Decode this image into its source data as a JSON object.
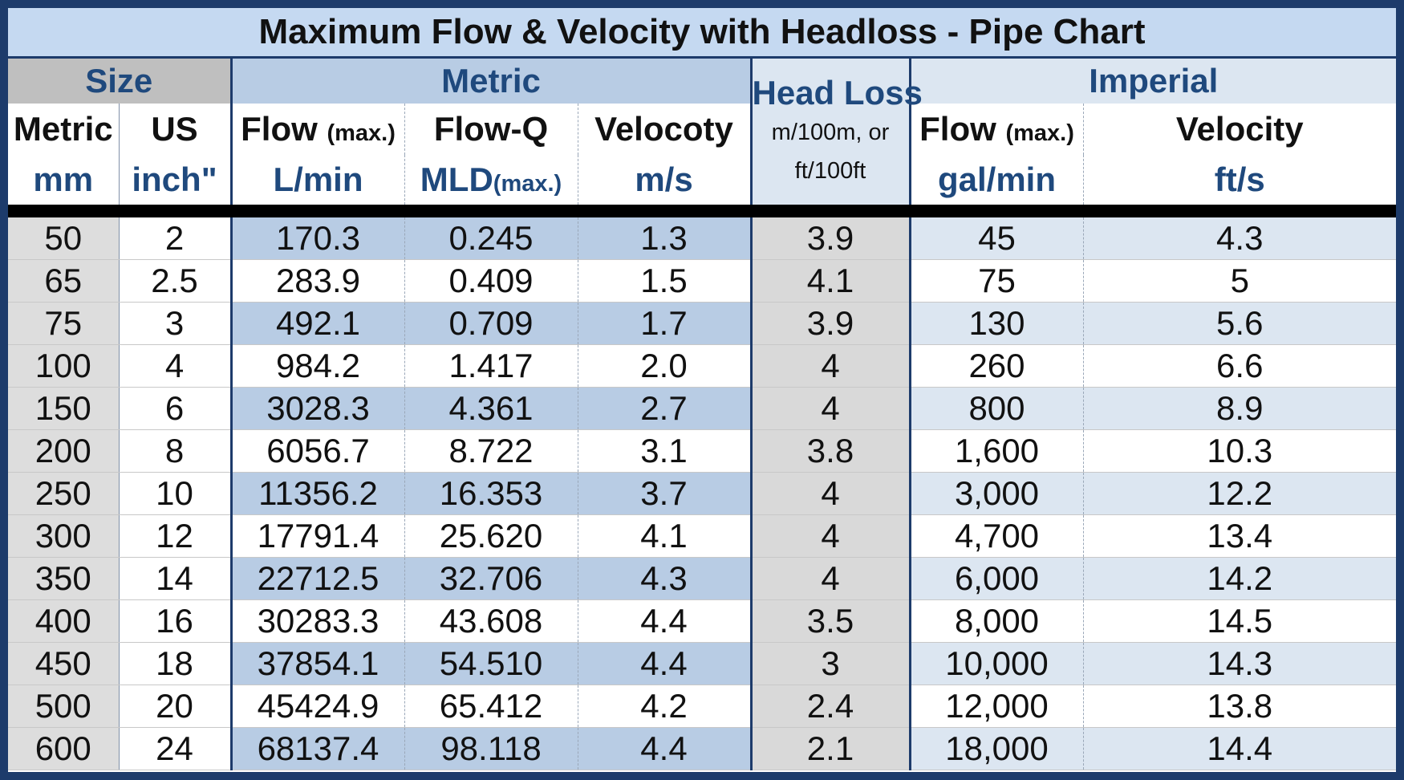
{
  "title": "Maximum Flow & Velocity with Headloss - Pipe Chart",
  "groups": {
    "size": "Size",
    "metric": "Metric",
    "head_loss": "Head Loss",
    "head_loss_unit_line1": "m/100m, or",
    "head_loss_unit_line2": "ft/100ft",
    "imperial": "Imperial"
  },
  "headers": {
    "metric_size": "Metric",
    "metric_size_unit": "mm",
    "us_size": "US",
    "us_size_unit": "inch\"",
    "flow_lmin": "Flow",
    "flow_lmin_max": "(max.)",
    "flow_lmin_unit": "L/min",
    "flow_q": "Flow-Q",
    "flow_q_unit": "MLD",
    "flow_q_unit_max": "(max.)",
    "velocity_ms": "Velocoty",
    "velocity_ms_unit": "m/s",
    "flow_gpm": "Flow",
    "flow_gpm_max": "(max.)",
    "flow_gpm_unit": "gal/min",
    "velocity_fts": "Velocity",
    "velocity_fts_unit": "ft/s"
  },
  "chart_data": {
    "type": "table",
    "title": "Maximum Flow & Velocity with Headloss - Pipe Chart",
    "columns": [
      "Metric mm",
      "US inch\"",
      "Flow (max.) L/min",
      "Flow-Q MLD(max.)",
      "Velocoty m/s",
      "Head Loss m/100m, or ft/100ft",
      "Flow (max.) gal/min",
      "Velocity ft/s"
    ],
    "rows": [
      [
        "50",
        "2",
        "170.3",
        "0.245",
        "1.3",
        "3.9",
        "45",
        "4.3"
      ],
      [
        "65",
        "2.5",
        "283.9",
        "0.409",
        "1.5",
        "4.1",
        "75",
        "5"
      ],
      [
        "75",
        "3",
        "492.1",
        "0.709",
        "1.7",
        "3.9",
        "130",
        "5.6"
      ],
      [
        "100",
        "4",
        "984.2",
        "1.417",
        "2.0",
        "4",
        "260",
        "6.6"
      ],
      [
        "150",
        "6",
        "3028.3",
        "4.361",
        "2.7",
        "4",
        "800",
        "8.9"
      ],
      [
        "200",
        "8",
        "6056.7",
        "8.722",
        "3.1",
        "3.8",
        "1,600",
        "10.3"
      ],
      [
        "250",
        "10",
        "11356.2",
        "16.353",
        "3.7",
        "4",
        "3,000",
        "12.2"
      ],
      [
        "300",
        "12",
        "17791.4",
        "25.620",
        "4.1",
        "4",
        "4,700",
        "13.4"
      ],
      [
        "350",
        "14",
        "22712.5",
        "32.706",
        "4.3",
        "4",
        "6,000",
        "14.2"
      ],
      [
        "400",
        "16",
        "30283.3",
        "43.608",
        "4.4",
        "3.5",
        "8,000",
        "14.5"
      ],
      [
        "450",
        "18",
        "37854.1",
        "54.510",
        "4.4",
        "3",
        "10,000",
        "14.3"
      ],
      [
        "500",
        "20",
        "45424.9",
        "65.412",
        "4.2",
        "2.4",
        "12,000",
        "13.8"
      ],
      [
        "600",
        "24",
        "68137.4",
        "98.118",
        "4.4",
        "2.1",
        "18,000",
        "14.4"
      ]
    ]
  }
}
